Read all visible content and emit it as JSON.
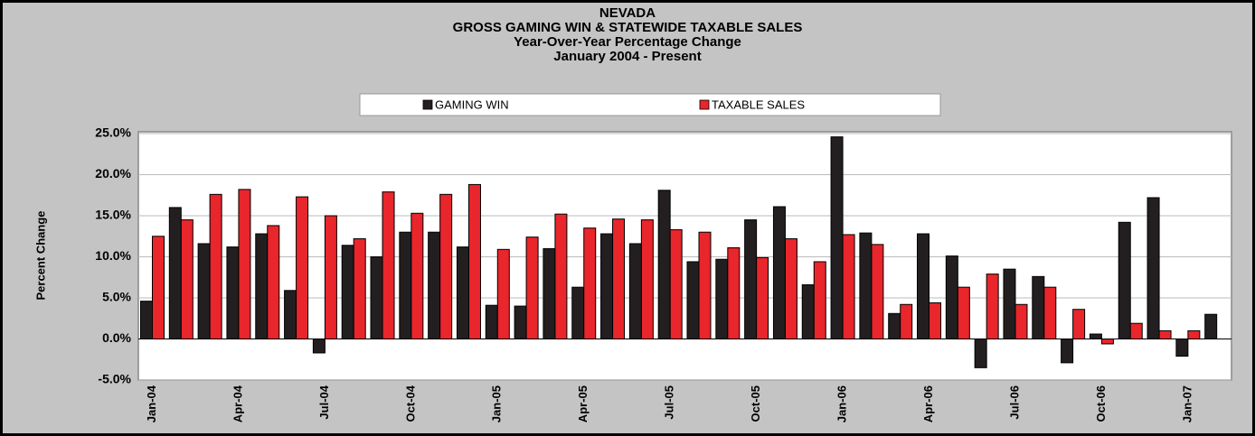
{
  "chart_data": {
    "type": "bar",
    "title": [
      "NEVADA",
      "GROSS GAMING WIN & STATEWIDE TAXABLE SALES",
      "Year-Over-Year Percentage Change",
      "January 2004 - Present"
    ],
    "y_label": "Percent Change",
    "categories": [
      "Jan-04",
      null,
      null,
      "Apr-04",
      null,
      null,
      "Jul-04",
      null,
      null,
      "Oct-04",
      null,
      null,
      "Jan-05",
      null,
      null,
      "Apr-05",
      null,
      null,
      "Jul-05",
      null,
      null,
      "Oct-05",
      null,
      null,
      "Jan-06",
      null,
      null,
      "Apr-06",
      null,
      null,
      "Jul-06",
      null,
      null,
      "Oct-06",
      null,
      null,
      "Jan-07",
      null
    ],
    "series": [
      {
        "name": "GAMING WIN",
        "color": "#231f20",
        "values": [
          4.6,
          16.0,
          11.6,
          11.2,
          12.8,
          5.9,
          -1.7,
          11.4,
          10.0,
          13.0,
          13.0,
          11.2,
          4.1,
          4.0,
          11.0,
          6.3,
          12.8,
          11.6,
          18.1,
          9.4,
          9.7,
          14.5,
          16.1,
          6.6,
          24.6,
          12.9,
          3.1,
          12.8,
          10.1,
          -3.5,
          8.5,
          7.6,
          -2.9,
          0.6,
          14.2,
          17.2,
          -2.1,
          3.0
        ]
      },
      {
        "name": "TAXABLE SALES",
        "color": "#e8262b",
        "values": [
          12.5,
          14.5,
          17.6,
          18.2,
          13.8,
          17.3,
          15.0,
          12.2,
          17.9,
          15.3,
          17.6,
          18.8,
          10.9,
          12.4,
          15.2,
          13.5,
          14.6,
          14.5,
          13.3,
          13.0,
          11.1,
          9.9,
          12.2,
          9.4,
          12.7,
          11.5,
          4.2,
          4.4,
          6.3,
          7.9,
          4.2,
          6.3,
          3.6,
          -0.6,
          1.9,
          1.0,
          1.0,
          null
        ]
      }
    ],
    "ylim": [
      -5,
      25
    ],
    "yticks": [
      {
        "value": -5,
        "label": "-5.0%"
      },
      {
        "value": 0,
        "label": "0.0%"
      },
      {
        "value": 5,
        "label": "5.0%"
      },
      {
        "value": 10,
        "label": "10.0%"
      },
      {
        "value": 15,
        "label": "15.0%"
      },
      {
        "value": 20,
        "label": "20.0%"
      },
      {
        "value": 25,
        "label": "25.0%"
      }
    ],
    "grid": true,
    "legend": "top"
  }
}
